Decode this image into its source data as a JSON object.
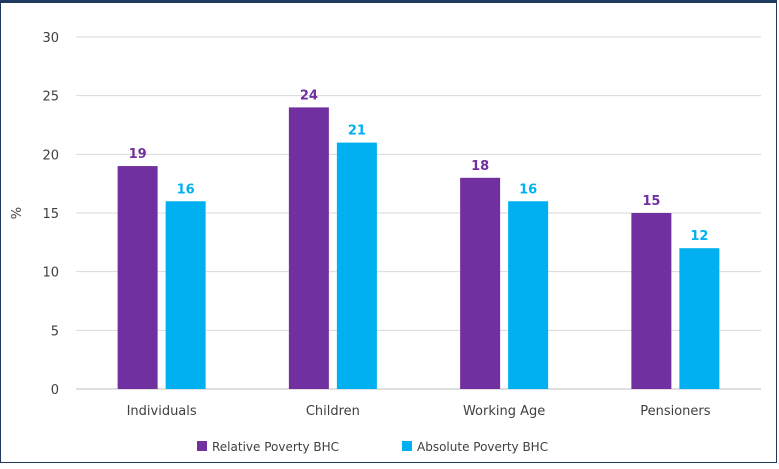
{
  "chart_data": {
    "type": "bar",
    "title": "",
    "xlabel": "",
    "ylabel": "%",
    "ylim": [
      0,
      30
    ],
    "yticks": [
      0,
      5,
      10,
      15,
      20,
      25,
      30
    ],
    "grid": true,
    "legend_position": "bottom",
    "categories": [
      "Individuals",
      "Children",
      "Working Age",
      "Pensioners"
    ],
    "series": [
      {
        "name": "Relative Poverty BHC",
        "color": "#7030a0",
        "label_color": "#7030a0",
        "values": [
          19,
          24,
          18,
          15
        ]
      },
      {
        "name": "Absolute Poverty BHC",
        "color": "#00b0f0",
        "label_color": "#00b0f0",
        "values": [
          16,
          21,
          16,
          12
        ]
      }
    ]
  }
}
